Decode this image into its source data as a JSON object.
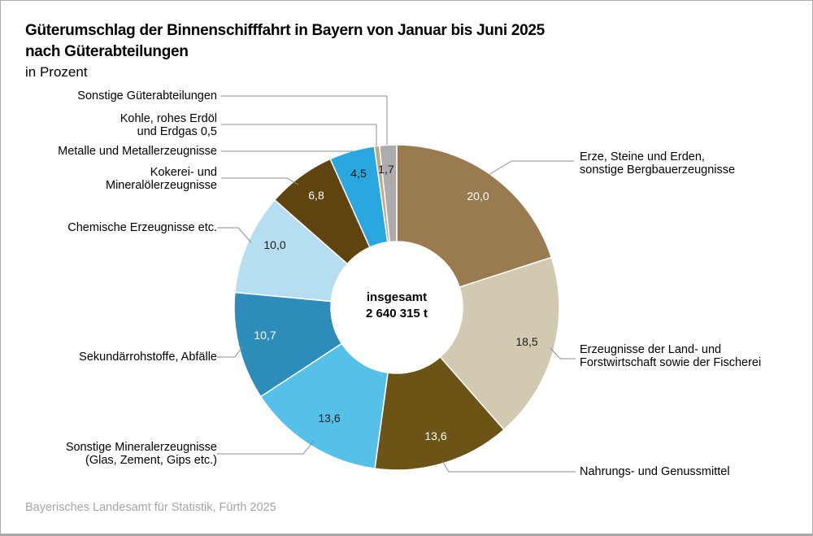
{
  "header": {
    "title_line1": "Güterumschlag der Binnenschifffahrt in Bayern von Januar bis Juni 2025",
    "title_line2": "nach Güterabteilungen",
    "subtitle": "in Prozent"
  },
  "center": {
    "line1": "insgesamt",
    "line2": "2 640 315 t"
  },
  "footer": {
    "source": "Bayerisches Landesamt für Statistik, Fürth 2025"
  },
  "chart_data": {
    "type": "pie",
    "subtype": "donut",
    "title": "Güterumschlag der Binnenschifffahrt in Bayern von Januar bis Juni 2025 nach Güterabteilungen",
    "unit": "Prozent",
    "total_tonnes_label": "insgesamt 2 640 315 t",
    "start_angle_deg": 0,
    "direction": "clockwise",
    "segments": [
      {
        "key": "erze-steine-erden",
        "label": "Erze, Steine und Erden,\nsonstige Bergbauerzeugnisse",
        "value": 20.0,
        "value_label": "20,0",
        "color": "#9A7B4F",
        "value_color": "#FFFFFF"
      },
      {
        "key": "land-forstwirtschaft",
        "label": "Erzeugnisse der Land- und\nForstwirtschaft sowie der Fischerei",
        "value": 18.5,
        "value_label": "18,5",
        "color": "#D2C9B1",
        "value_color": "#1A1A1A"
      },
      {
        "key": "nahrungs-genussmittel",
        "label": "Nahrungs- und Genussmittel",
        "value": 13.6,
        "value_label": "13,6",
        "color": "#6C5316",
        "value_color": "#FFFFFF"
      },
      {
        "key": "sonstige-mineralerzeugnisse",
        "label": "Sonstige Mineralerzeugnisse\n(Glas, Zement, Gips etc.)",
        "value": 13.6,
        "value_label": "13,6",
        "color": "#55C0E8",
        "value_color": "#1A1A1A"
      },
      {
        "key": "sekundaerrohstoffe-abfaelle",
        "label": "Sekundärrohstoffe, Abfälle",
        "value": 10.7,
        "value_label": "10,7",
        "color": "#2E8CBA",
        "value_color": "#FFFFFF"
      },
      {
        "key": "chemische-erzeugnisse",
        "label": "Chemische Erzeugnisse etc.",
        "value": 10.0,
        "value_label": "10,0",
        "color": "#B6DEF1",
        "value_color": "#1A1A1A"
      },
      {
        "key": "kokerei-mineraloel",
        "label": "Kokerei- und\nMineralölerzeugnisse",
        "value": 6.8,
        "value_label": "6,8",
        "color": "#5F440F",
        "value_color": "#FFFFFF"
      },
      {
        "key": "metalle",
        "label": "Metalle und Metallerzeugnisse",
        "value": 4.5,
        "value_label": "4,5",
        "color": "#29A8DF",
        "value_color": "#1A1A1A"
      },
      {
        "key": "kohle-erdoel-erdgas",
        "label": "Kohle, rohes Erdöl\nund Erdgas 0,5",
        "value": 0.5,
        "value_label": "",
        "color": "#C0A982",
        "value_color": "#1A1A1A"
      },
      {
        "key": "sonstige-gueterabteilungen",
        "label": "Sonstige Güterabteilungen",
        "value": 1.7,
        "value_label": "1,7",
        "color": "#ACACAC",
        "value_color": "#1A1A1A"
      }
    ]
  }
}
